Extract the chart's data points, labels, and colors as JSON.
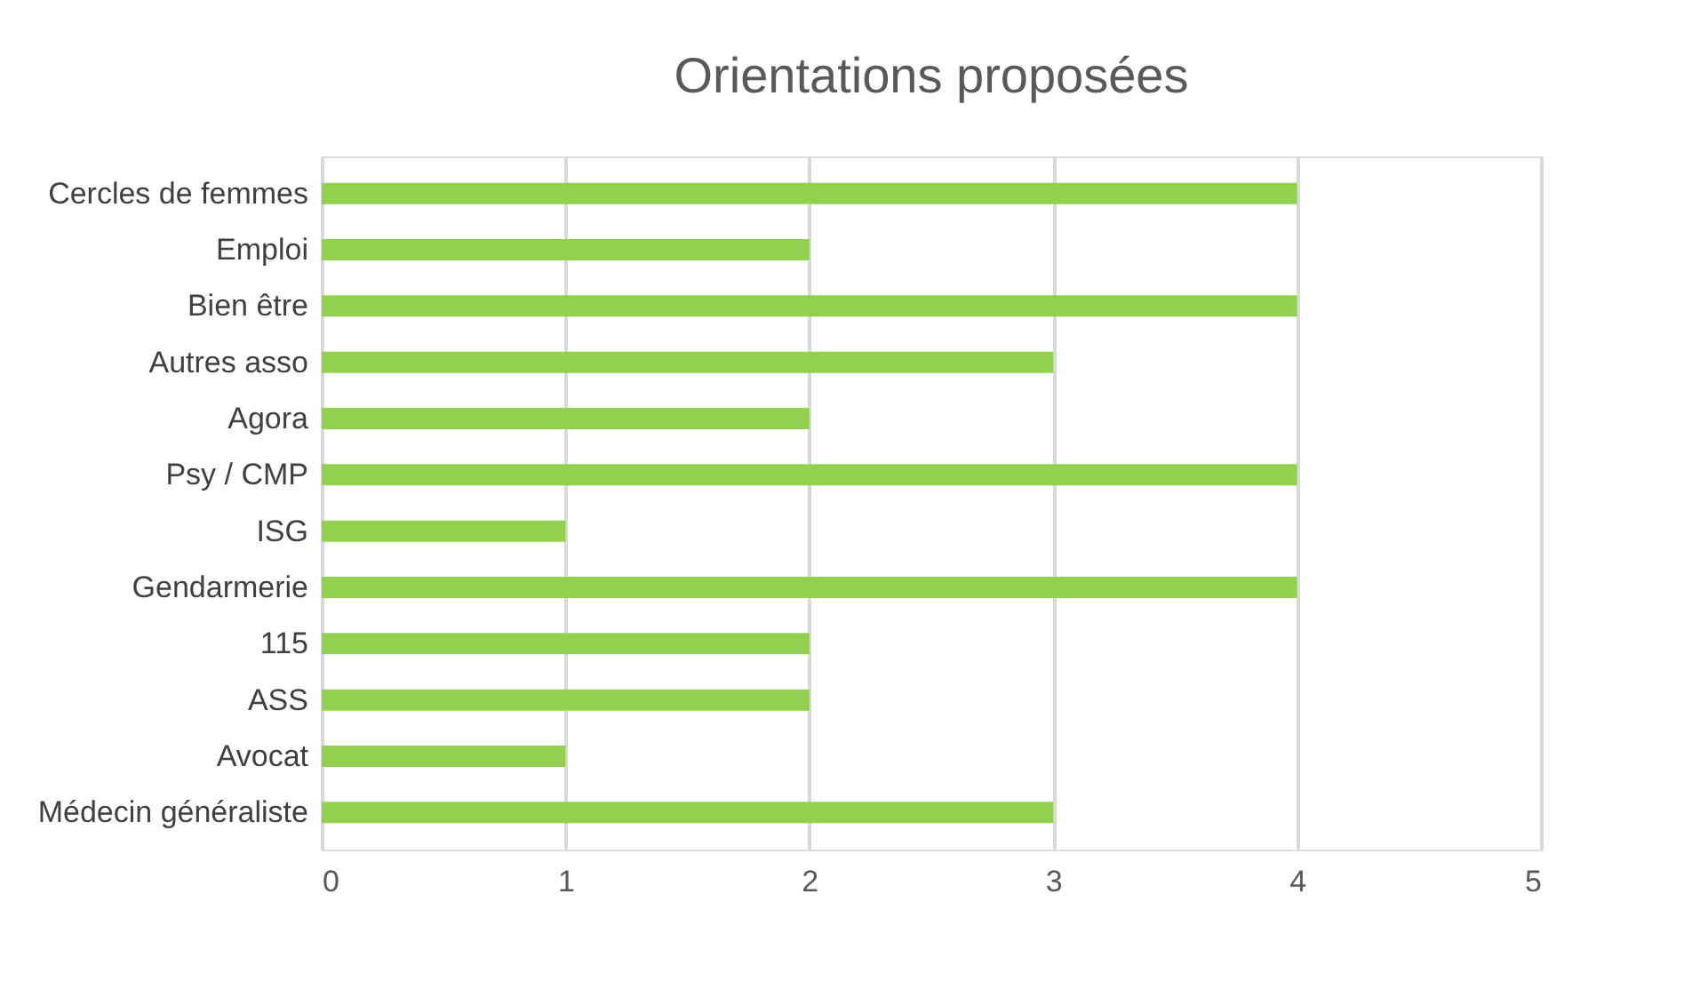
{
  "chart_data": {
    "type": "bar",
    "orientation": "horizontal",
    "title": "Orientations proposées",
    "categories": [
      "Cercles de femmes",
      "Emploi",
      "Bien être",
      "Autres asso",
      "Agora",
      "Psy / CMP",
      "ISG",
      "Gendarmerie",
      "115",
      "ASS",
      "Avocat",
      "Médecin généraliste"
    ],
    "values": [
      4,
      2,
      4,
      3,
      2,
      4,
      1,
      4,
      2,
      2,
      1,
      3
    ],
    "color": "#92d050",
    "xlim": [
      0,
      5
    ],
    "xticks": [
      0,
      1,
      2,
      3,
      4,
      5
    ],
    "grid": "x"
  }
}
